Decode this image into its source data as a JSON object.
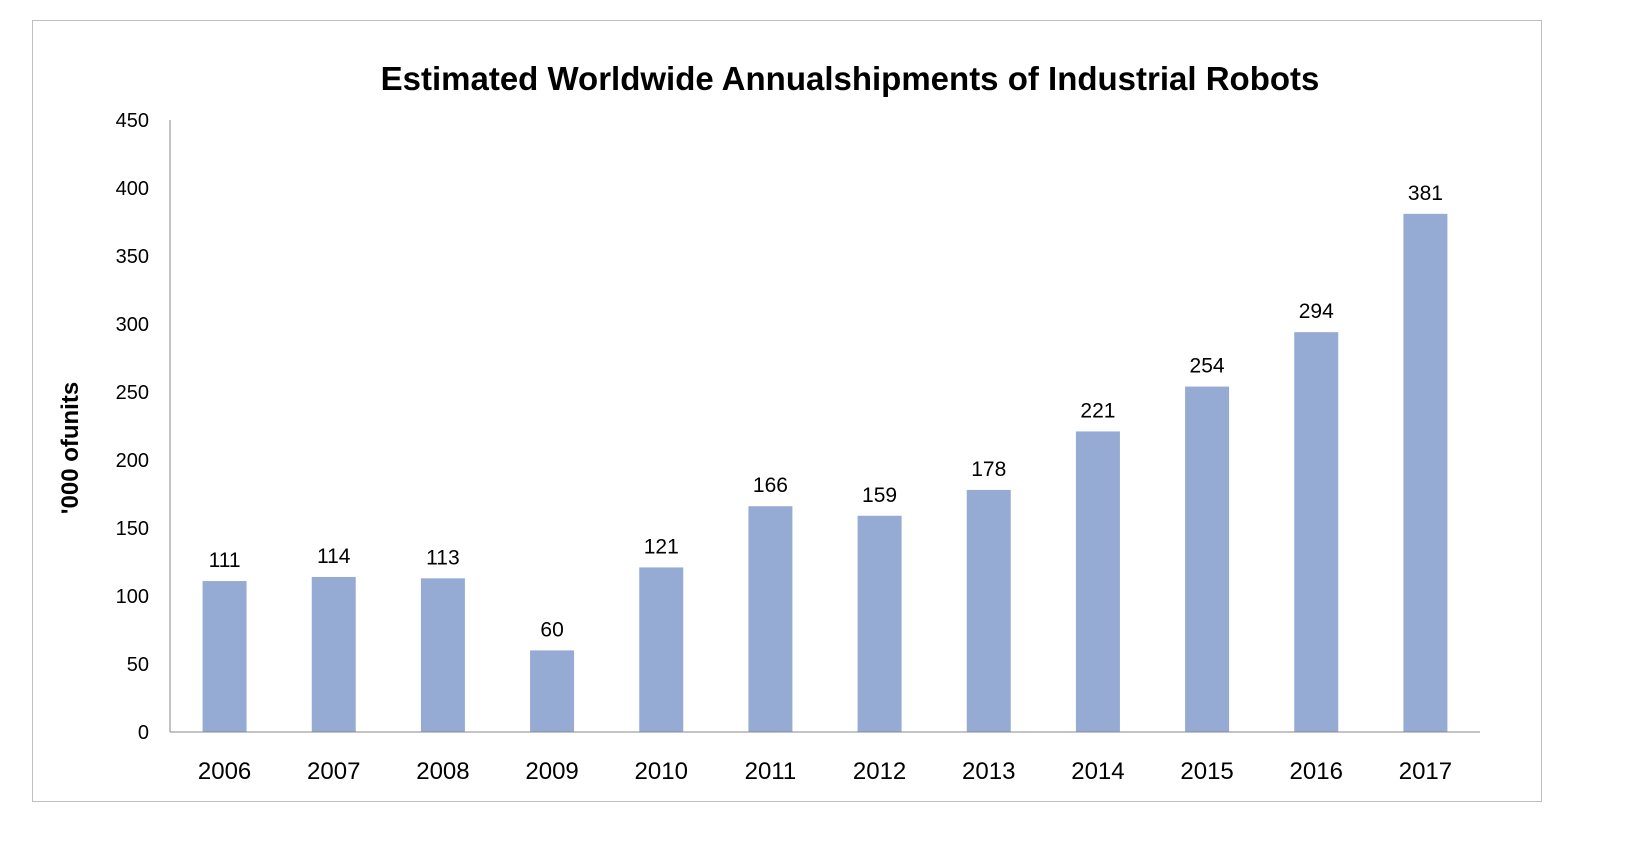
{
  "chart_data": {
    "type": "bar",
    "title": "Estimated Worldwide Annualshipments of Industrial Robots",
    "xlabel": "",
    "ylabel": "'000 ofunits",
    "categories": [
      "2006",
      "2007",
      "2008",
      "2009",
      "2010",
      "2011",
      "2012",
      "2013",
      "2014",
      "2015",
      "2016",
      "2017"
    ],
    "values": [
      111,
      114,
      113,
      60,
      121,
      166,
      159,
      178,
      221,
      254,
      294,
      381
    ],
    "ylim": [
      0,
      450
    ],
    "yticks": [
      0,
      50,
      100,
      150,
      200,
      250,
      300,
      350,
      400,
      450
    ],
    "grid": false,
    "legend": "none",
    "bar_color": "#95abd4",
    "axis_color": "#888888"
  }
}
